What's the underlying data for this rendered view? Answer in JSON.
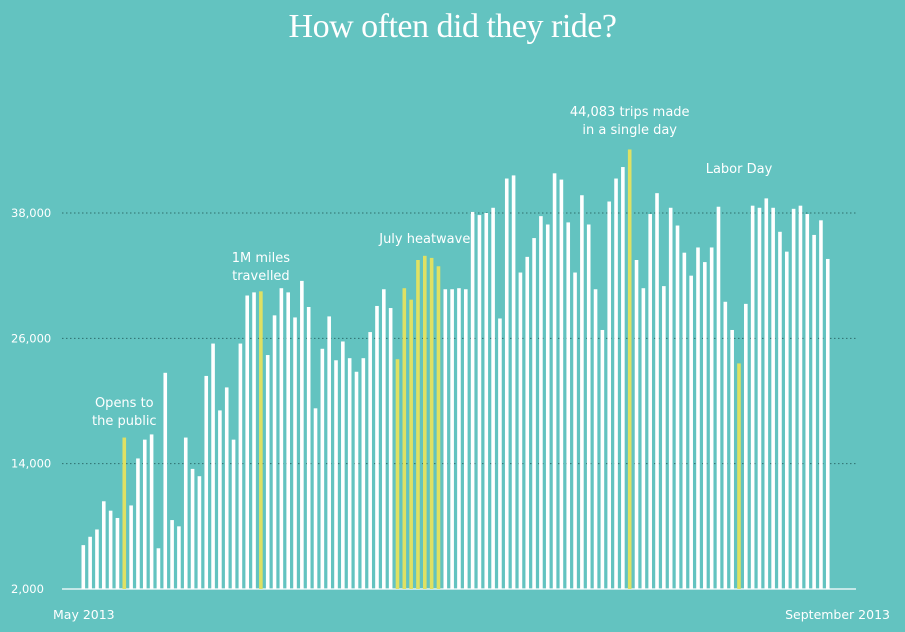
{
  "chart_data": {
    "type": "bar",
    "title": "How often did they ride?",
    "xlabel": "",
    "ylabel": "",
    "ylim": [
      2000,
      44083
    ],
    "yticks": [
      2000,
      14000,
      26000,
      38000
    ],
    "ytick_labels": [
      "2,000",
      "14,000",
      "26,000",
      "38,000"
    ],
    "x_start_label": "May 2013",
    "x_end_label": "September 2013",
    "colors": {
      "normal": "#ffffff",
      "highlight": "#dfe163",
      "background": "#63c3c0",
      "grid": "#2f6f6d"
    },
    "values": [
      6200,
      7000,
      7700,
      10400,
      9500,
      8800,
      16500,
      10000,
      14500,
      16300,
      16800,
      5900,
      22700,
      8600,
      8000,
      16500,
      13500,
      12800,
      22400,
      25500,
      19100,
      21300,
      16300,
      25500,
      30100,
      30400,
      30500,
      24400,
      28200,
      30800,
      30400,
      28000,
      31500,
      29000,
      19300,
      25000,
      28100,
      23900,
      25700,
      24100,
      22800,
      24100,
      26600,
      29100,
      30700,
      28900,
      24000,
      30800,
      29700,
      33500,
      33900,
      33700,
      32900,
      30700,
      30700,
      30800,
      30700,
      38100,
      37800,
      38000,
      38500,
      27900,
      41300,
      41600,
      32300,
      33800,
      35600,
      37700,
      36900,
      41800,
      41200,
      37100,
      32300,
      39700,
      36900,
      30700,
      26800,
      39100,
      41300,
      42400,
      44083,
      33500,
      30800,
      37900,
      39900,
      31000,
      38500,
      36800,
      34200,
      32000,
      34700,
      33300,
      34700,
      38600,
      29500,
      26800,
      23600,
      29300,
      38700,
      38500,
      39400,
      38500,
      36200,
      34300,
      38400,
      38700,
      37900,
      35900,
      37300,
      33600
    ],
    "highlights": [
      6,
      26,
      46,
      47,
      48,
      49,
      50,
      51,
      52,
      80,
      96
    ],
    "annotations": [
      {
        "lines": [
          "Opens to",
          "the public"
        ],
        "bar": 6
      },
      {
        "lines": [
          "1M miles",
          "travelled"
        ],
        "bar": 26
      },
      {
        "lines": [
          "July heatwave"
        ],
        "bar": 50
      },
      {
        "lines": [
          "44,083 trips made",
          "in a single day"
        ],
        "bar": 80
      },
      {
        "lines": [
          "Labor Day"
        ],
        "bar": 96
      }
    ]
  }
}
